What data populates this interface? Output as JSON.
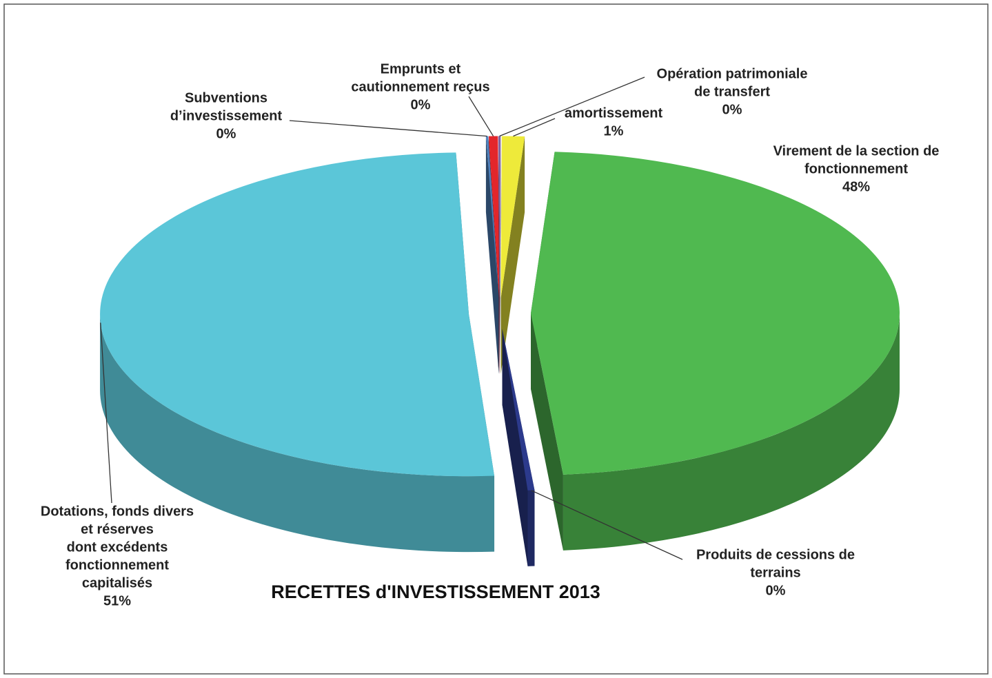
{
  "chart_data": {
    "type": "pie3d",
    "title": "RECETTES d'INVESTISSEMENT 2013",
    "categories": [
      [
        "Subventions",
        "d’investissement"
      ],
      [
        "Emprunts et",
        "cautionnement reçus"
      ],
      [
        "Opération patrimoniale",
        "de transfert"
      ],
      [
        "amortissement"
      ],
      [
        "Virement de la section de",
        "fonctionnement"
      ],
      [
        "Produits de cessions  de",
        "terrains"
      ],
      [
        "Dotations, fonds divers",
        "et réserves",
        "dont excédents",
        "fonctionnement",
        "capitalisés"
      ]
    ],
    "values": [
      0.1,
      0.4,
      0.1,
      1,
      48,
      0.3,
      51
    ],
    "value_labels": [
      "0%",
      "0%",
      "0%",
      "1%",
      "48%",
      "0%",
      "51%"
    ],
    "colors": [
      "#4f81bd",
      "#e3262b",
      "#8064a2",
      "#eeea3a",
      "#50b950",
      "#2c3a8c",
      "#5bc6d8"
    ]
  }
}
